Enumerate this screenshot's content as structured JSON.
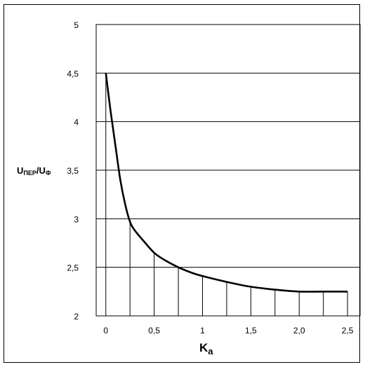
{
  "chart_data": {
    "type": "line",
    "title": "",
    "xlabel": "K",
    "xlabel_sub": "a",
    "ylabel": {
      "u1": "U",
      "sub1": "ПЕР",
      "slash": "/",
      "u2": "U",
      "sub2": "Ф"
    },
    "xlim": [
      -0.1,
      2.63
    ],
    "ylim": [
      2,
      5
    ],
    "xticks": [
      {
        "value": 0,
        "label": "0"
      },
      {
        "value": 0.5,
        "label": "0,5"
      },
      {
        "value": 1,
        "label": "1"
      },
      {
        "value": 1.5,
        "label": "1,5"
      },
      {
        "value": 2,
        "label": "2,0"
      },
      {
        "value": 2.5,
        "label": "2,5"
      }
    ],
    "yticks": [
      {
        "value": 2,
        "label": "2"
      },
      {
        "value": 2.5,
        "label": "2,5"
      },
      {
        "value": 3,
        "label": "3"
      },
      {
        "value": 3.5,
        "label": "3,5"
      },
      {
        "value": 4,
        "label": "4"
      },
      {
        "value": 4.5,
        "label": "4,5"
      },
      {
        "value": 5,
        "label": "5"
      }
    ],
    "grid": "horizontal",
    "legend": "none",
    "series": [
      {
        "x": [
          0,
          0.05,
          0.1,
          0.15,
          0.2,
          0.25,
          0.3,
          0.4,
          0.5,
          0.6,
          0.75,
          0.9,
          1.0,
          1.25,
          1.5,
          1.75,
          2.0,
          2.25,
          2.5
        ],
        "y": [
          4.5,
          4.1,
          3.75,
          3.4,
          3.15,
          2.97,
          2.88,
          2.76,
          2.65,
          2.58,
          2.5,
          2.44,
          2.41,
          2.35,
          2.3,
          2.27,
          2.25,
          2.25,
          2.25
        ]
      }
    ],
    "verticals": {
      "x": [
        0,
        0.25,
        0.5,
        0.75,
        1.0,
        1.25,
        1.5,
        1.75,
        2.0,
        2.25,
        2.5
      ],
      "y": [
        4.5,
        2.97,
        2.65,
        2.5,
        2.41,
        2.35,
        2.3,
        2.27,
        2.25,
        2.25,
        2.25
      ]
    }
  }
}
